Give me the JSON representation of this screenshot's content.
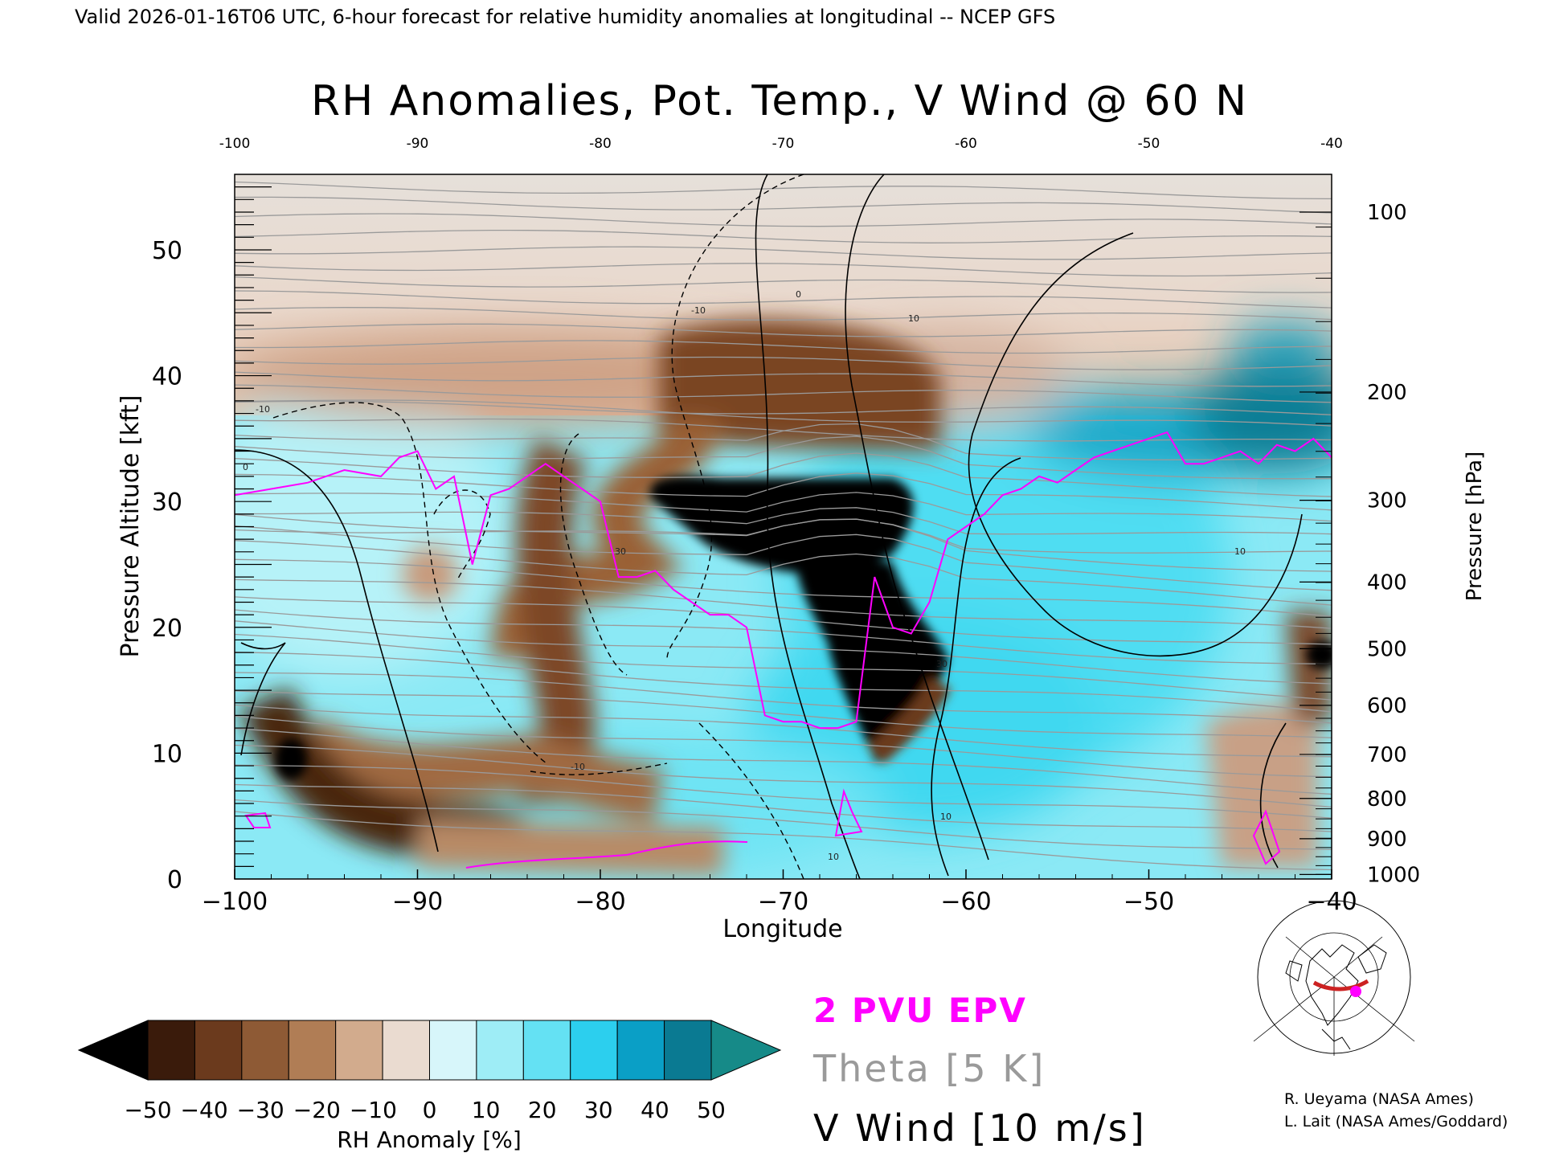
{
  "header": {
    "valid_line": "Valid 2026-01-16T06 UTC, 6-hour forecast for relative humidity anomalies at longitudinal -- NCEP GFS",
    "title": "RH Anomalies, Pot. Temp., V Wind @ 60 N"
  },
  "chart_data": {
    "type": "heatmap",
    "title": "RH Anomalies, Pot. Temp., V Wind @ 60 N",
    "xlabel": "Longitude",
    "ylabel_left": "Pressure Altitude [kft]",
    "ylabel_right": "Pressure [hPa]",
    "xlim": [
      -100,
      -40
    ],
    "ylim": [
      0,
      56
    ],
    "x_ticks": [
      "−100",
      "−90",
      "−80",
      "−70",
      "−60",
      "−50",
      "−40"
    ],
    "x_top_ticks": [
      "-100",
      "-90",
      "-80",
      "-70",
      "-60",
      "-50",
      "-40"
    ],
    "y_ticks": [
      "0",
      "10",
      "20",
      "30",
      "40",
      "50"
    ],
    "y_tick_values": [
      0,
      10,
      20,
      30,
      40,
      50
    ],
    "pressure_ticks": [
      {
        "label": "100",
        "kft": 53.0
      },
      {
        "label": "200",
        "kft": 38.7
      },
      {
        "label": "300",
        "kft": 30.1
      },
      {
        "label": "400",
        "kft": 23.6
      },
      {
        "label": "500",
        "kft": 18.3
      },
      {
        "label": "600",
        "kft": 13.8
      },
      {
        "label": "700",
        "kft": 9.9
      },
      {
        "label": "800",
        "kft": 6.4
      },
      {
        "label": "900",
        "kft": 3.2
      },
      {
        "label": "1000",
        "kft": 0.36
      }
    ],
    "rh_anomaly_regions": [
      {
        "name": "dry core",
        "value": -50,
        "x": -67,
        "y": 26
      },
      {
        "name": "dry lower tongue",
        "value": -45,
        "x": -64,
        "y": 14
      },
      {
        "name": "dry low-level band",
        "value": -35,
        "x": -90,
        "y": 6
      },
      {
        "name": "dry spot",
        "value": -50,
        "x": -97,
        "y": 9.5
      },
      {
        "name": "dry column",
        "value": -25,
        "x": -81,
        "y": 20
      },
      {
        "name": "dry east patch",
        "value": -25,
        "x": -42,
        "y": 18
      },
      {
        "name": "moist upper east",
        "value": 40,
        "x": -48,
        "y": 36
      },
      {
        "name": "moist midlevels",
        "value": 20,
        "x": -56,
        "y": 20
      }
    ],
    "theta_contours_K": [
      250,
      270,
      280,
      290,
      310,
      320,
      330,
      340,
      350,
      360,
      370,
      380,
      390,
      400,
      410,
      420
    ],
    "v_wind_contours": [
      "-10",
      "0",
      "10",
      "30"
    ],
    "series": [
      {
        "name": "2 PVU EPV",
        "color": "#ff00ff",
        "x": [
          -100,
          -98,
          -96,
          -94,
          -92,
          -91,
          -90,
          -89,
          -88,
          -87,
          -86,
          -85,
          -84,
          -83,
          -82,
          -81,
          -80,
          -79,
          -78,
          -77,
          -76,
          -75,
          -74,
          -73,
          -72,
          -71,
          -70,
          -69,
          -68,
          -67,
          -66,
          -65,
          -64,
          -63,
          -62,
          -61,
          -60,
          -59,
          -58,
          -57,
          -56,
          -55,
          -54,
          -53,
          -52,
          -51,
          -50,
          -49,
          -48,
          -47,
          -46,
          -45,
          -44,
          -43,
          -42,
          -41,
          -40
        ],
        "y": [
          30.5,
          31,
          31.5,
          32.5,
          32,
          33.5,
          34,
          31,
          32,
          25,
          30.5,
          31,
          32,
          33,
          32,
          31,
          30,
          24,
          24,
          24.5,
          23,
          22,
          21,
          21,
          20,
          13,
          12.5,
          12.5,
          12,
          12,
          12.5,
          24,
          20,
          19.5,
          22,
          27,
          28,
          29,
          30.5,
          31,
          32,
          31.5,
          32.5,
          33.5,
          34,
          34.5,
          35,
          35.5,
          33,
          33,
          33.5,
          34,
          33,
          34.5,
          34,
          35,
          33.5
        ]
      }
    ],
    "colorbar": {
      "label": "RH Anomaly [%]",
      "ticks": [
        "−50",
        "−40",
        "−30",
        "−20",
        "−10",
        "0",
        "10",
        "20",
        "30",
        "40",
        "50"
      ],
      "colors": [
        "#000000",
        "#3a1b0b",
        "#6b3a1d",
        "#8e5a35",
        "#b07d55",
        "#d2ab8d",
        "#eadbd0",
        "#d7f6fa",
        "#9eedf6",
        "#64e1f3",
        "#2ccfee",
        "#0a9fc6",
        "#0a7a92",
        "#168a88"
      ]
    },
    "legend": [
      {
        "label": "2 PVU EPV",
        "color": "#ff00ff"
      },
      {
        "label": "Theta [5 K]",
        "color": "#9a9a9a"
      },
      {
        "label": "V Wind [10 m/s]",
        "color": "#000000"
      }
    ]
  },
  "credits": [
    "R. Ueyama (NASA Ames)",
    "L. Lait (NASA Ames/Goddard)"
  ],
  "inset_map": {
    "icon": "polar-stereographic-map-icon",
    "path_color": "#cc2222",
    "marker_color": "#ff00ff"
  }
}
